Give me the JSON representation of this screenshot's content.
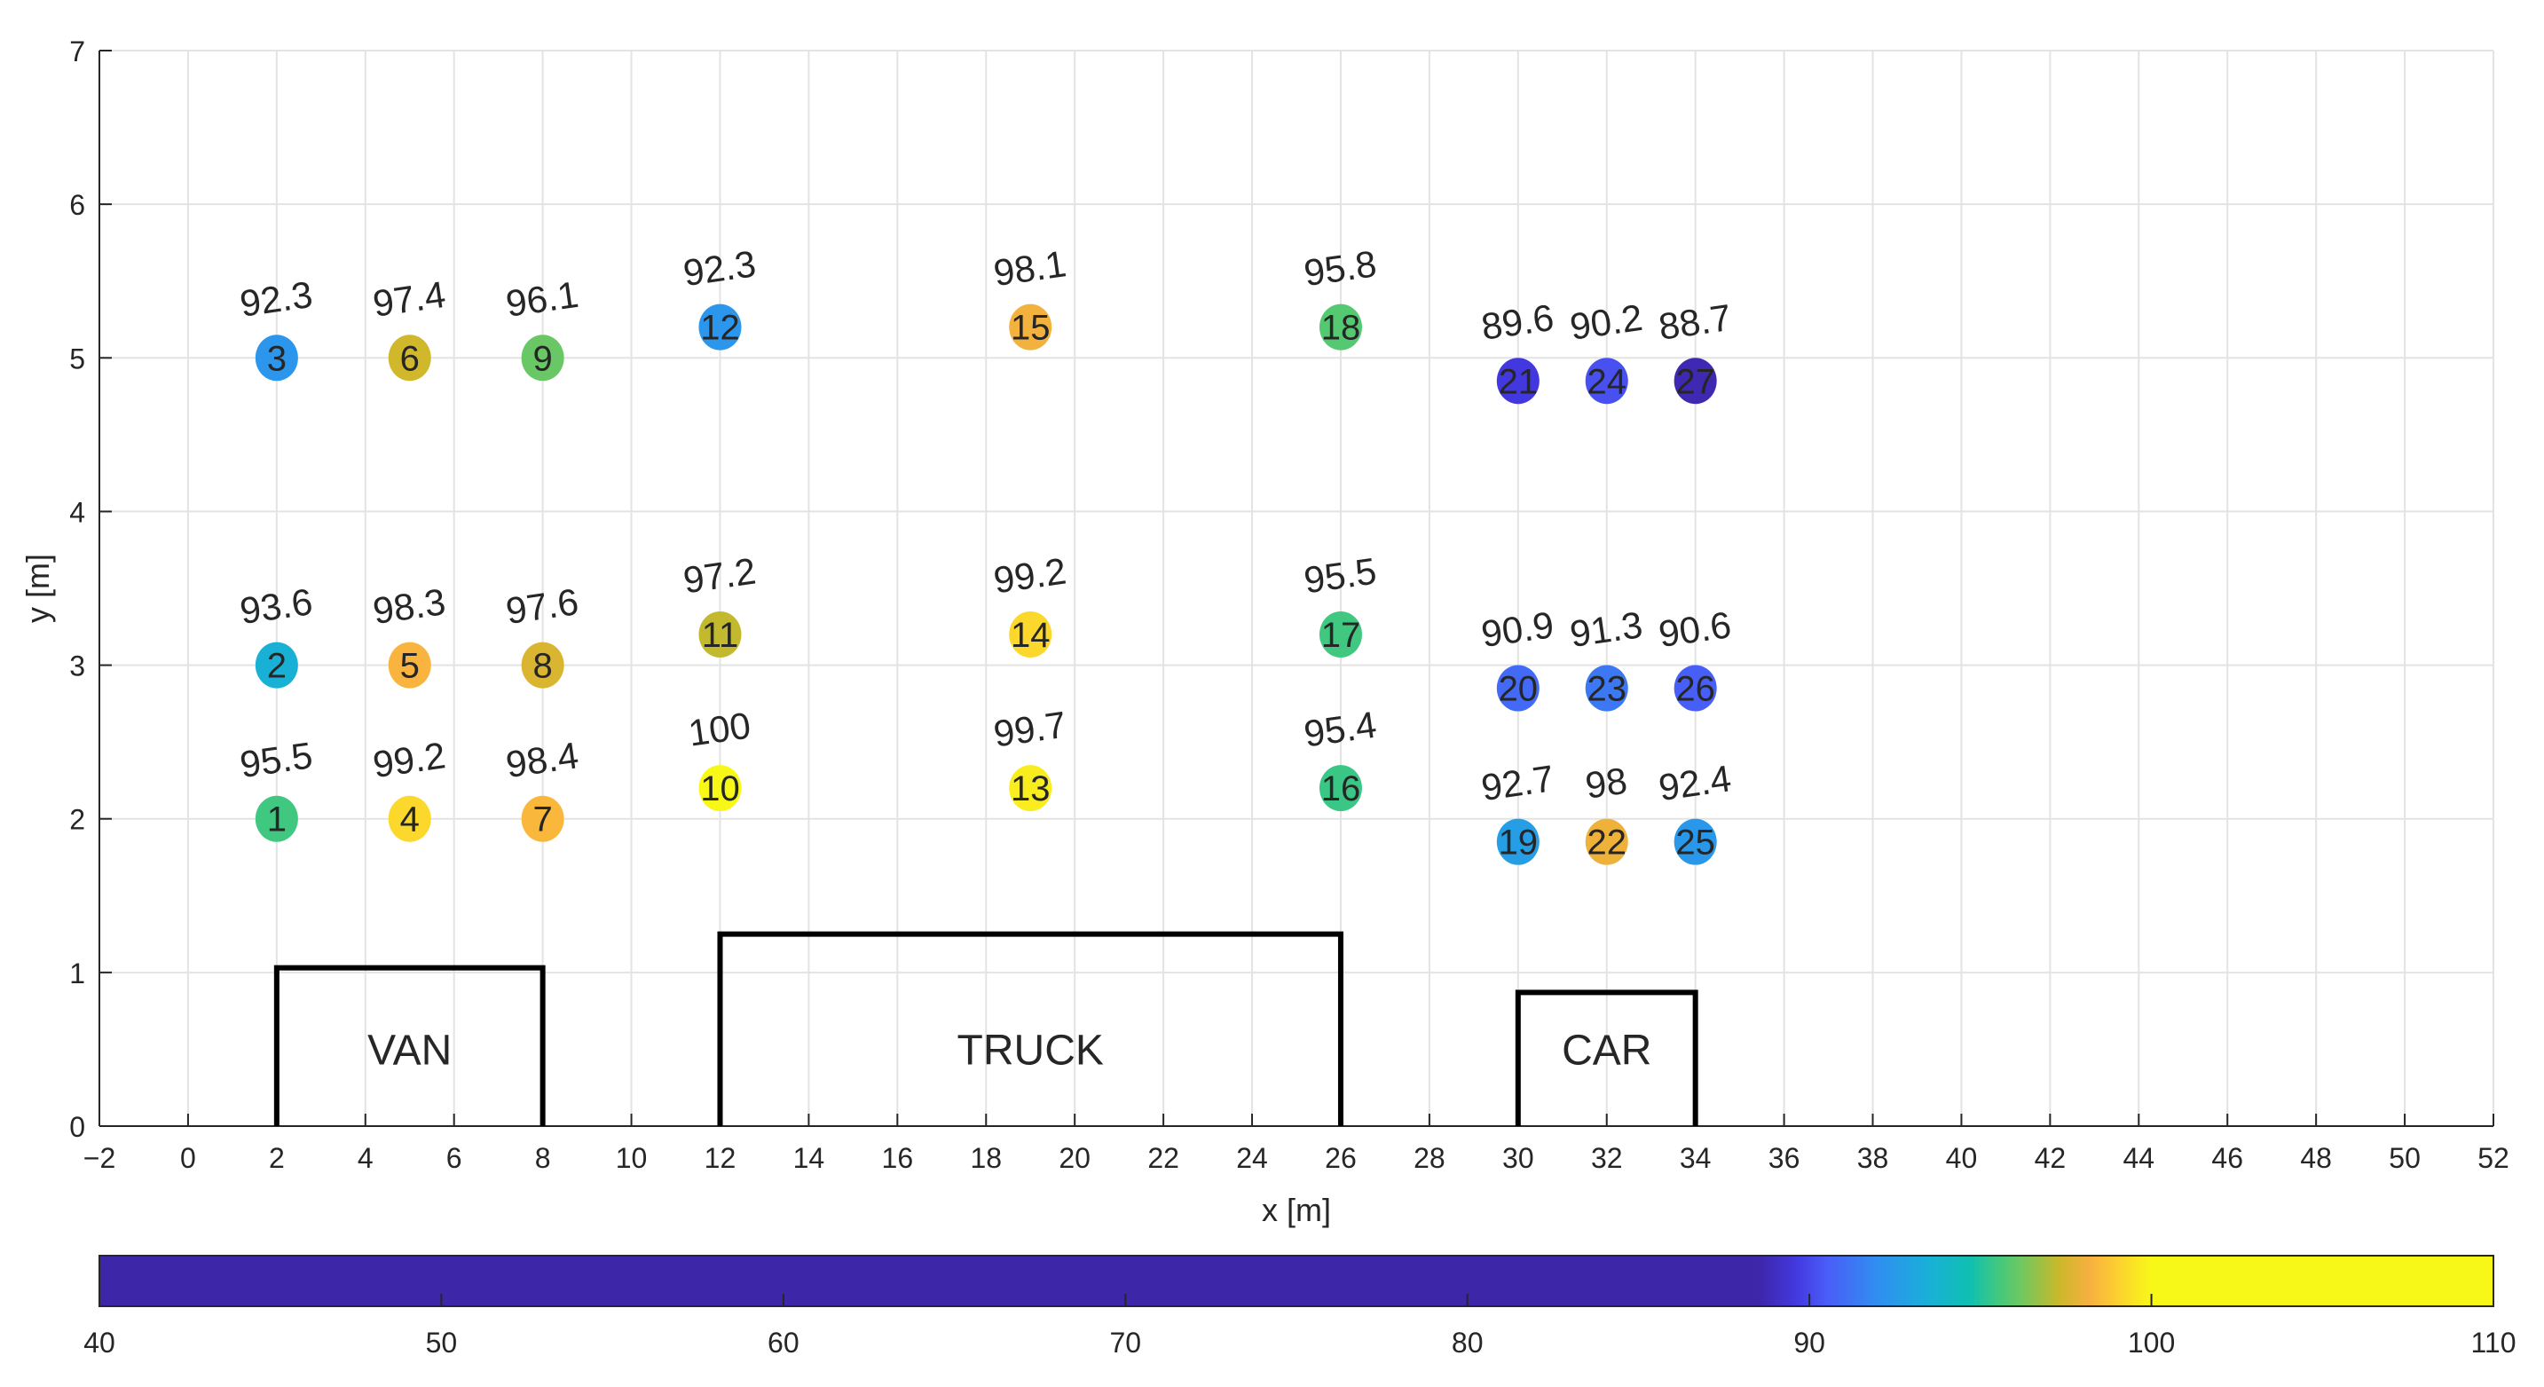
{
  "chart_data": {
    "type": "scatter",
    "title": "",
    "xlabel": "x [m]",
    "ylabel": "y [m]",
    "xlim": [
      -2,
      52
    ],
    "ylim": [
      0,
      7
    ],
    "xticks": [
      -2,
      0,
      2,
      4,
      6,
      8,
      10,
      12,
      14,
      16,
      18,
      20,
      22,
      24,
      26,
      28,
      30,
      32,
      34,
      36,
      38,
      40,
      42,
      44,
      46,
      48,
      50,
      52
    ],
    "yticks": [
      0,
      1,
      2,
      3,
      4,
      5,
      6,
      7
    ],
    "grid": true,
    "points": [
      {
        "id": "1",
        "x": 2,
        "y": 2,
        "value": "95.5"
      },
      {
        "id": "2",
        "x": 2,
        "y": 3,
        "value": "93.6"
      },
      {
        "id": "3",
        "x": 2,
        "y": 5,
        "value": "92.3"
      },
      {
        "id": "4",
        "x": 5,
        "y": 2,
        "value": "99.2"
      },
      {
        "id": "5",
        "x": 5,
        "y": 3,
        "value": "98.3"
      },
      {
        "id": "6",
        "x": 5,
        "y": 5,
        "value": "97.4"
      },
      {
        "id": "7",
        "x": 8,
        "y": 2,
        "value": "98.4"
      },
      {
        "id": "8",
        "x": 8,
        "y": 3,
        "value": "97.6"
      },
      {
        "id": "9",
        "x": 8,
        "y": 5,
        "value": "96.1"
      },
      {
        "id": "10",
        "x": 12,
        "y": 2.2,
        "value": "100"
      },
      {
        "id": "11",
        "x": 12,
        "y": 3.2,
        "value": "97.2"
      },
      {
        "id": "12",
        "x": 12,
        "y": 5.2,
        "value": "92.3"
      },
      {
        "id": "13",
        "x": 19,
        "y": 2.2,
        "value": "99.7"
      },
      {
        "id": "14",
        "x": 19,
        "y": 3.2,
        "value": "99.2"
      },
      {
        "id": "15",
        "x": 19,
        "y": 5.2,
        "value": "98.1"
      },
      {
        "id": "16",
        "x": 26,
        "y": 2.2,
        "value": "95.4"
      },
      {
        "id": "17",
        "x": 26,
        "y": 3.2,
        "value": "95.5"
      },
      {
        "id": "18",
        "x": 26,
        "y": 5.2,
        "value": "95.8"
      },
      {
        "id": "19",
        "x": 30,
        "y": 1.85,
        "value": "92.7"
      },
      {
        "id": "20",
        "x": 30,
        "y": 2.85,
        "value": "90.9"
      },
      {
        "id": "21",
        "x": 30,
        "y": 4.85,
        "value": "89.6"
      },
      {
        "id": "22",
        "x": 32,
        "y": 1.85,
        "value": "98"
      },
      {
        "id": "23",
        "x": 32,
        "y": 2.85,
        "value": "91.3"
      },
      {
        "id": "24",
        "x": 32,
        "y": 4.85,
        "value": "90.2"
      },
      {
        "id": "25",
        "x": 34,
        "y": 1.85,
        "value": "92.4"
      },
      {
        "id": "26",
        "x": 34,
        "y": 2.85,
        "value": "90.6"
      },
      {
        "id": "27",
        "x": 34,
        "y": 4.85,
        "value": "88.7"
      }
    ],
    "vehicles": [
      {
        "label": "VAN",
        "x0": 2,
        "x1": 8,
        "height": 1.03
      },
      {
        "label": "TRUCK",
        "x0": 12,
        "x1": 26,
        "height": 1.25
      },
      {
        "label": "CAR",
        "x0": 30,
        "x1": 34,
        "height": 0.87
      }
    ],
    "colorbar": {
      "orientation": "horizontal",
      "location": "bottom",
      "range": [
        40,
        110
      ],
      "ticks": [
        40,
        50,
        60,
        70,
        80,
        90,
        100,
        110
      ],
      "colormap": [
        [
          40,
          "#3e26a8"
        ],
        [
          88.5,
          "#3e26a8"
        ],
        [
          89.6,
          "#4338e0"
        ],
        [
          90.5,
          "#4a5cf8"
        ],
        [
          92,
          "#2f8ff0"
        ],
        [
          93.5,
          "#19b0d8"
        ],
        [
          94.7,
          "#10c0b0"
        ],
        [
          95.5,
          "#40c880"
        ],
        [
          96.2,
          "#70c860"
        ],
        [
          97.3,
          "#cbb82a"
        ],
        [
          98.2,
          "#f8b040"
        ],
        [
          99,
          "#fcd030"
        ],
        [
          100,
          "#f8f818"
        ],
        [
          110,
          "#f8f818"
        ]
      ]
    }
  }
}
